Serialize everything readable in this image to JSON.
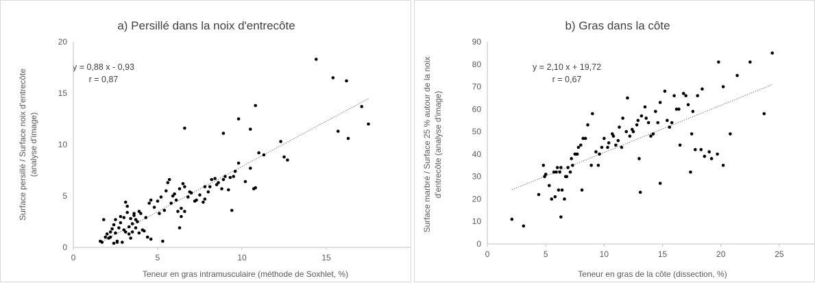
{
  "chart_data": [
    {
      "type": "scatter",
      "title": "a) Persillé dans la noix d'entrecôte",
      "xlabel": "Teneur en gras intramusculaire (méthode de Soxhlet, %)",
      "ylabel_lines": [
        "Surface persillé / Surface noix d'entrecôte",
        "(analyse d'image)"
      ],
      "xlim": [
        0,
        20
      ],
      "ylim": [
        0,
        20
      ],
      "xticks": [
        "0",
        "5",
        "10",
        "15"
      ],
      "yticks": [
        "0",
        "5",
        "10",
        "15",
        "20"
      ],
      "grid": false,
      "trendline": {
        "slope": 0.88,
        "intercept": -0.93,
        "x_range": [
          1.6,
          17.5
        ]
      },
      "equation": "y = 0,88 x - 0,93",
      "r_text": "r = 0,87",
      "x": [
        1.6,
        1.7,
        1.8,
        1.9,
        2.0,
        2.1,
        2.2,
        2.3,
        2.4,
        2.5,
        2.6,
        2.7,
        2.8,
        2.9,
        3.0,
        3.1,
        3.2,
        3.3,
        3.4,
        3.5,
        3.6,
        3.7,
        3.8,
        3.9,
        4.0,
        2.5,
        2.8,
        3.0,
        3.2,
        3.5,
        3.7,
        3.9,
        4.1,
        4.3,
        4.5,
        2.2,
        2.6,
        3.1,
        3.3,
        3.6,
        4.2,
        4.4,
        4.6,
        4.8,
        5.0,
        5.2,
        5.4,
        5.6,
        5.8,
        6.0,
        6.2,
        6.4,
        6.6,
        6.8,
        5.1,
        5.5,
        5.9,
        6.3,
        6.5,
        7.0,
        7.2,
        7.5,
        7.8,
        8.0,
        8.2,
        8.5,
        8.8,
        9.0,
        9.3,
        9.6,
        5.7,
        6.1,
        6.4,
        6.6,
        6.9,
        7.3,
        7.7,
        8.1,
        8.4,
        8.6,
        8.9,
        9.2,
        9.5,
        9.8,
        10.2,
        10.5,
        10.8,
        11.0,
        11.3,
        6.6,
        8.9,
        9.8,
        10.5,
        10.8,
        12.3,
        12.5,
        12.7,
        14.4,
        15.4,
        15.7,
        16.2,
        16.3,
        17.1,
        17.5,
        6.3,
        3.4,
        5.3,
        2.4,
        4.6,
        7.8,
        9.4,
        10.7
      ],
      "y": [
        0.6,
        0.5,
        2.7,
        1.0,
        1.3,
        0.9,
        1.5,
        1.8,
        2.2,
        1.4,
        0.6,
        1.9,
        2.4,
        0.5,
        2.9,
        1.5,
        3.4,
        2.0,
        2.8,
        1.5,
        3.1,
        1.9,
        2.5,
        1.4,
        3.3,
        2.7,
        3.0,
        1.7,
        4.0,
        2.3,
        2.7,
        3.5,
        1.7,
        2.9,
        4.3,
        1.0,
        0.5,
        4.4,
        1.3,
        3.3,
        1.6,
        1.0,
        4.6,
        3.9,
        4.5,
        4.9,
        3.6,
        6.3,
        4.3,
        5.2,
        3.5,
        3.8,
        5.9,
        4.9,
        3.3,
        5.5,
        5.0,
        5.7,
        6.2,
        5.3,
        4.5,
        5.1,
        5.9,
        5.4,
        6.6,
        6.1,
        5.7,
        6.9,
        6.8,
        7.4,
        6.6,
        4.6,
        3.0,
        3.5,
        5.4,
        4.6,
        4.4,
        5.9,
        6.7,
        6.3,
        6.6,
        5.6,
        6.9,
        8.2,
        6.4,
        7.7,
        5.8,
        9.2,
        9.0,
        11.6,
        11.1,
        12.5,
        11.5,
        13.8,
        10.3,
        8.8,
        8.5,
        18.3,
        16.5,
        11.3,
        16.2,
        10.6,
        13.7,
        12.0,
        1.9,
        0.9,
        0.6,
        0.4,
        0.8,
        4.7,
        3.6,
        5.7
      ]
    },
    {
      "type": "scatter",
      "title": "b) Gras dans la côte",
      "xlabel": "Teneur en gras de la côte (dissection, %)",
      "ylabel_lines": [
        "Surface marbré / Surface 25 % autour de la noix",
        "d'entrecôte (analyse d'image)"
      ],
      "xlim": [
        0,
        28
      ],
      "ylim": [
        0,
        90
      ],
      "xticks": [
        "0",
        "5",
        "10",
        "15",
        "20",
        "25"
      ],
      "yticks": [
        "0",
        "10",
        "20",
        "30",
        "40",
        "50",
        "60",
        "70",
        "80",
        "90"
      ],
      "grid": false,
      "trendline": {
        "slope": 2.1,
        "intercept": 19.72,
        "x_range": [
          2.1,
          24.4
        ]
      },
      "equation": "y = 2,10 x + 19,72",
      "r_text": "r = 0,67",
      "x": [
        2.1,
        3.1,
        4.8,
        5.0,
        5.3,
        5.7,
        6.0,
        6.2,
        6.4,
        6.7,
        6.9,
        7.2,
        7.5,
        7.8,
        8.0,
        4.9,
        5.5,
        6.1,
        6.3,
        6.8,
        7.3,
        7.7,
        8.2,
        8.6,
        9.0,
        9.3,
        9.6,
        10.0,
        10.3,
        10.7,
        11.0,
        11.3,
        11.6,
        12.0,
        12.4,
        12.8,
        13.2,
        13.6,
        14.0,
        14.4,
        14.8,
        15.2,
        15.6,
        16.0,
        16.4,
        16.8,
        17.2,
        17.6,
        18.0,
        18.4,
        11.5,
        12.2,
        13.0,
        13.8,
        14.6,
        15.4,
        16.2,
        17.0,
        17.8,
        18.6,
        19.2,
        19.8,
        20.2,
        20.8,
        21.4,
        22.5,
        23.7,
        24.4,
        6.3,
        7.1,
        8.1,
        9.5,
        10.8,
        12.9,
        13.5,
        14.2,
        16.5,
        17.5,
        18.3,
        19.7,
        20.2,
        19.0,
        17.4,
        15.8,
        14.8,
        13.1,
        12.5,
        11.9,
        11.2,
        10.4,
        9.8,
        8.9,
        8.4,
        7.6,
        6.6,
        5.8,
        4.4,
        5.9
      ],
      "y": [
        11,
        8,
        35,
        31,
        26,
        32,
        34,
        32,
        24,
        30,
        34,
        38,
        40,
        43,
        44,
        30,
        20,
        24,
        34,
        30,
        35,
        40,
        47,
        53,
        58,
        41,
        40,
        47,
        43,
        49,
        44,
        52,
        56,
        65,
        51,
        53,
        57,
        56,
        48,
        59,
        63,
        68,
        52,
        66,
        60,
        67,
        62,
        59,
        66,
        69,
        43,
        48,
        38,
        54,
        54,
        55,
        60,
        66,
        42,
        39,
        38,
        81,
        70,
        49,
        75,
        81,
        58,
        85,
        12,
        32,
        24,
        35,
        48,
        55,
        61,
        49,
        44,
        49,
        42,
        40,
        35,
        41,
        32,
        54,
        27,
        23,
        50,
        50,
        46,
        45,
        43,
        35,
        47,
        40,
        20,
        21,
        22,
        32
      ]
    }
  ]
}
